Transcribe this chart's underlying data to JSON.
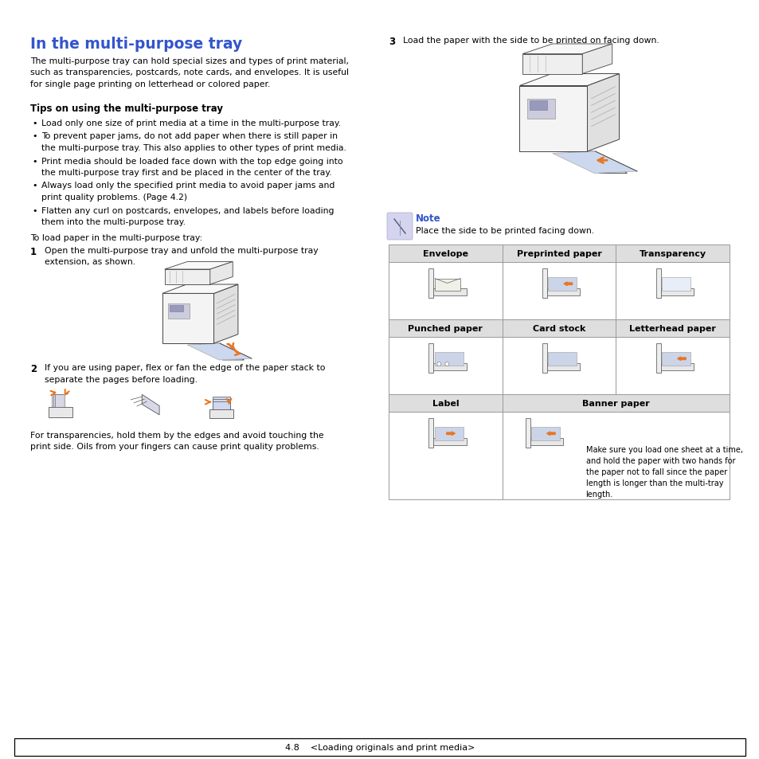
{
  "title": "In the multi-purpose tray",
  "title_color": "#3355cc",
  "bg_color": "#ffffff",
  "subtitle": "Tips on using the multi-purpose tray",
  "intro_text": "The multi-purpose tray can hold special sizes and types of print material,\nsuch as transparencies, postcards, note cards, and envelopes. It is useful\nfor single page printing on letterhead or colored paper.",
  "bullets": [
    "Load only one size of print media at a time in the multi-purpose tray.",
    "To prevent paper jams, do not add paper when there is still paper in\nthe multi-purpose tray. This also applies to other types of print media.",
    "Print media should be loaded face down with the top edge going into\nthe multi-purpose tray first and be placed in the center of the tray.",
    "Always load only the specified print media to avoid paper jams and\nprint quality problems. (Page 4.2)",
    "Flatten any curl on postcards, envelopes, and labels before loading\nthem into the multi-purpose tray."
  ],
  "load_text": "To load paper in the multi-purpose tray:",
  "step1_text": "Open the multi-purpose tray and unfold the multi-purpose tray\nextension, as shown.",
  "step2_text": "If you are using paper, flex or fan the edge of the paper stack to\nseparate the pages before loading.",
  "step2_sub": "For transparencies, hold them by the edges and avoid touching the\nprint side. Oils from your fingers can cause print quality problems.",
  "step3_text": "Load the paper with the side to be printed on facing down.",
  "note_title": "Note",
  "note_title_color": "#3355cc",
  "note_text": "Place the side to be printed facing down.",
  "table_headers_row1": [
    "Envelope",
    "Preprinted paper",
    "Transparency"
  ],
  "table_headers_row2": [
    "Punched paper",
    "Card stock",
    "Letterhead paper"
  ],
  "table_headers_row3": [
    "Label",
    "Banner paper"
  ],
  "banner_text": "Make sure you load one sheet at a time,\nand hold the paper with two hands for\nthe paper not to fall since the paper\nlength is longer than the multi-tray\nlength.",
  "footer_text": "4.8    <Loading originals and print media>",
  "table_border_color": "#999999",
  "table_header_bg": "#dedede",
  "orange": "#E87722",
  "light_blue": "#ccd4e8",
  "line_color": "#444444"
}
